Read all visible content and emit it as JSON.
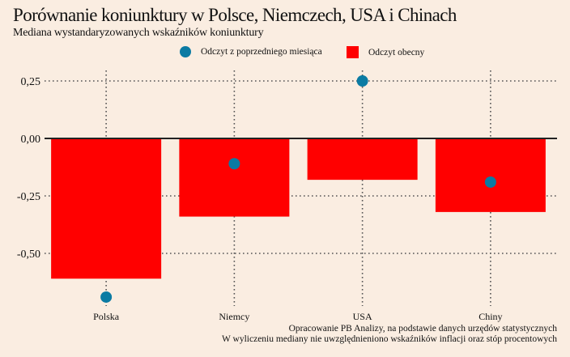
{
  "colors": {
    "background": "#FAEDE1",
    "bar": "#FF0000",
    "dot": "#0B7BA3",
    "grid": "#555555",
    "axis": "#222222"
  },
  "chart_data": {
    "type": "bar",
    "title": "Porównanie koniunktury w Polsce, Niemczech, USA i Chinach",
    "subtitle": "Mediana wystandaryzowanych wskaźników koniunktury",
    "xlabel": "",
    "ylabel": "",
    "categories": [
      "Polska",
      "Niemcy",
      "USA",
      "Chiny"
    ],
    "series": [
      {
        "name": "Odczyt obecny",
        "kind": "bar",
        "values": [
          -0.61,
          -0.34,
          -0.18,
          -0.32
        ]
      },
      {
        "name": "Odczyt z poprzedniego miesiąca",
        "kind": "dot",
        "values": [
          -0.69,
          -0.11,
          0.25,
          -0.19
        ]
      }
    ],
    "ylim": [
      -0.7,
      0.3
    ],
    "yticks": [
      0.25,
      0.0,
      -0.25,
      -0.5
    ],
    "ytick_labels": [
      "0,25",
      "0,00",
      "-0,25",
      "-0,50"
    ],
    "grid": true,
    "legend_position": "top-center",
    "legend": [
      {
        "label": "Odczyt z poprzedniego miesiąca",
        "shape": "dot"
      },
      {
        "label": "Odczyt obecny",
        "shape": "square"
      }
    ]
  },
  "source": {
    "line1": "Opracowanie PB Analizy, na podstawie danych urzędów statystycznych",
    "line2": "W wyliczeniu mediany nie uwzględnieniono wskaźników inflacji oraz stóp procentowych"
  }
}
